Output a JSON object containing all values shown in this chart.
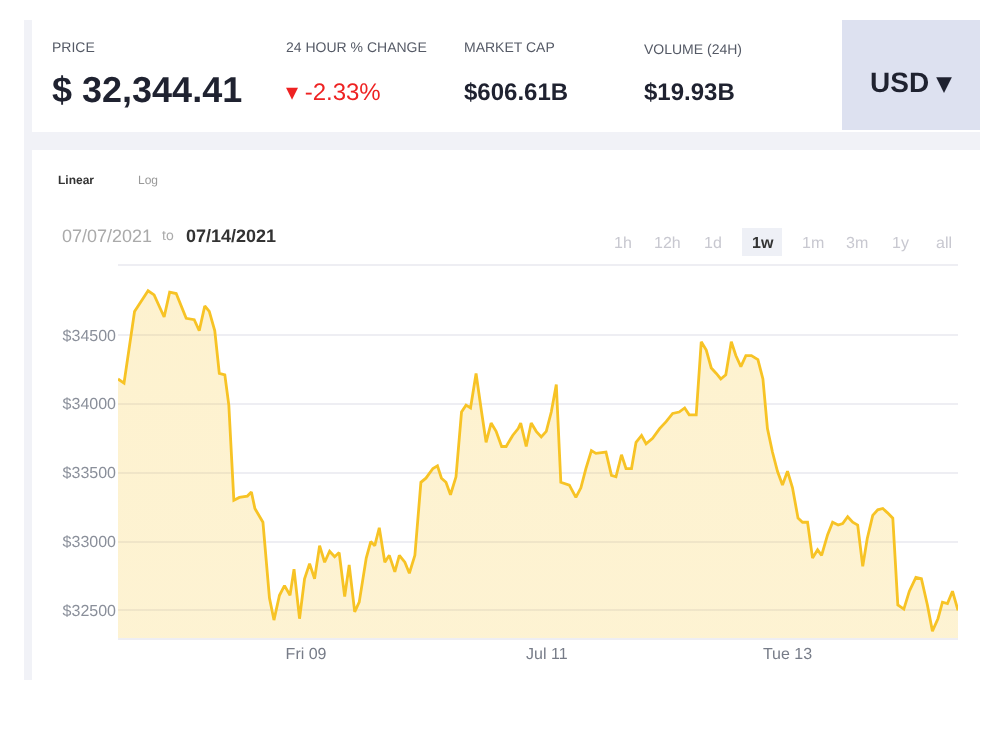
{
  "chart_data": [
    {
      "type": "other",
      "annotations": [
        "PRICE",
        "$ 32,344.41",
        "24 HOUR % CHANGE",
        "▾ -2.33%",
        "MARKET CAP",
        "$606.61B",
        "VOLUME (24H)",
        "$19.93B",
        "USD ▾"
      ]
    },
    {
      "type": "area",
      "annotations": [
        "Linear",
        "Log",
        "07/07/2021",
        "to",
        "07/14/2021",
        "1h",
        "12h",
        "1d",
        "1w",
        "1m",
        "3m",
        "1y",
        "all"
      ],
      "xlim": [
        "2021-07-07T10:30",
        "2021-07-14T10:00"
      ],
      "ylim": [
        32300,
        35000
      ],
      "xticks": [
        {
          "value": "2021-07-09",
          "label": "Fri 09"
        },
        {
          "value": "2021-07-11",
          "label": "Jul 11"
        },
        {
          "value": "2021-07-13",
          "label": "Tue 13"
        }
      ],
      "yticks": [
        {
          "value": 32500,
          "label": "$32500"
        },
        {
          "value": 33000,
          "label": "$33000"
        },
        {
          "value": 33500,
          "label": "$33500"
        },
        {
          "value": 34000,
          "label": "$34000"
        },
        {
          "value": 34500,
          "label": "$34500"
        }
      ],
      "grid": "y",
      "x": [
        "2021-07-07T10:30",
        "2021-07-07T11:42",
        "2021-07-07T13:48",
        "2021-07-07T16:30",
        "2021-07-07T17:42",
        "2021-07-07T19:42",
        "2021-07-07T20:48",
        "2021-07-07T22:06",
        "2021-07-08T00:06",
        "2021-07-08T01:42",
        "2021-07-08T02:42",
        "2021-07-08T03:48",
        "2021-07-08T04:42",
        "2021-07-08T05:48",
        "2021-07-08T06:42",
        "2021-07-08T07:48",
        "2021-07-08T08:36",
        "2021-07-08T09:36",
        "2021-07-08T10:42",
        "2021-07-08T12:18",
        "2021-07-08T13:06",
        "2021-07-08T13:48",
        "2021-07-08T15:24",
        "2021-07-08T16:42",
        "2021-07-08T17:36",
        "2021-07-08T18:42",
        "2021-07-08T19:42",
        "2021-07-08T20:48",
        "2021-07-08T21:36",
        "2021-07-08T22:42",
        "2021-07-08T23:42",
        "2021-07-09T00:42",
        "2021-07-09T01:42",
        "2021-07-09T02:42",
        "2021-07-09T03:42",
        "2021-07-09T04:42",
        "2021-07-09T05:42",
        "2021-07-09T06:36",
        "2021-07-09T07:42",
        "2021-07-09T08:36",
        "2021-07-09T09:42",
        "2021-07-09T10:36",
        "2021-07-09T12:00",
        "2021-07-09T12:54",
        "2021-07-09T13:42",
        "2021-07-09T14:36",
        "2021-07-09T15:42",
        "2021-07-09T16:36",
        "2021-07-09T17:42",
        "2021-07-09T18:36",
        "2021-07-09T19:42",
        "2021-07-09T20:36",
        "2021-07-09T21:42",
        "2021-07-09T22:54",
        "2021-07-09T23:54",
        "2021-07-10T01:18",
        "2021-07-10T02:12",
        "2021-07-10T03:00",
        "2021-07-10T03:54",
        "2021-07-10T04:48",
        "2021-07-10T05:54",
        "2021-07-10T07:00",
        "2021-07-10T07:54",
        "2021-07-10T08:48",
        "2021-07-10T09:54",
        "2021-07-10T11:00",
        "2021-07-10T11:54",
        "2021-07-10T12:54",
        "2021-07-10T13:54",
        "2021-07-10T15:00",
        "2021-07-10T15:54",
        "2021-07-10T17:12",
        "2021-07-10T18:18",
        "2021-07-10T18:48",
        "2021-07-10T19:54",
        "2021-07-10T20:54",
        "2021-07-10T21:54",
        "2021-07-10T22:54",
        "2021-07-10T23:54",
        "2021-07-11T00:54",
        "2021-07-11T01:54",
        "2021-07-11T02:48",
        "2021-07-11T04:30",
        "2021-07-11T05:48",
        "2021-07-11T06:48",
        "2021-07-11T07:48",
        "2021-07-11T08:54",
        "2021-07-11T09:48",
        "2021-07-11T11:48",
        "2021-07-11T12:54",
        "2021-07-11T13:48",
        "2021-07-11T14:54",
        "2021-07-11T15:48",
        "2021-07-11T16:54",
        "2021-07-11T17:48",
        "2021-07-11T18:54",
        "2021-07-11T19:48",
        "2021-07-11T21:06",
        "2021-07-11T22:30",
        "2021-07-11T23:48",
        "2021-07-12T01:06",
        "2021-07-12T02:24",
        "2021-07-12T03:30",
        "2021-07-12T04:24",
        "2021-07-12T05:48",
        "2021-07-12T06:48",
        "2021-07-12T07:48",
        "2021-07-12T08:48",
        "2021-07-12T09:48",
        "2021-07-12T10:42",
        "2021-07-12T11:42",
        "2021-07-12T12:48",
        "2021-07-12T13:42",
        "2021-07-12T14:42",
        "2021-07-12T15:42",
        "2021-07-12T16:48",
        "2021-07-12T18:06",
        "2021-07-12T19:06",
        "2021-07-12T20:00",
        "2021-07-12T21:00",
        "2021-07-12T22:00",
        "2021-07-12T23:00",
        "2021-07-13T00:00",
        "2021-07-13T01:00",
        "2021-07-13T02:06",
        "2021-07-13T03:00",
        "2021-07-13T04:00",
        "2021-07-13T05:00",
        "2021-07-13T06:00",
        "2021-07-13T06:48",
        "2021-07-13T08:00",
        "2021-07-13T09:00",
        "2021-07-13T10:06",
        "2021-07-13T11:00",
        "2021-07-13T12:00",
        "2021-07-13T13:00",
        "2021-07-13T14:00",
        "2021-07-13T15:00",
        "2021-07-13T15:54",
        "2021-07-13T17:00",
        "2021-07-13T18:00",
        "2021-07-13T19:00",
        "2021-07-13T19:54",
        "2021-07-13T21:00",
        "2021-07-13T22:00",
        "2021-07-13T23:12",
        "2021-07-14T00:18",
        "2021-07-14T01:36",
        "2021-07-14T02:42",
        "2021-07-14T03:54",
        "2021-07-14T04:54",
        "2021-07-14T06:00",
        "2021-07-14T06:54",
        "2021-07-14T07:54",
        "2021-07-14T08:54",
        "2021-07-14T10:00"
      ],
      "series": [
        {
          "color": "#f7c325",
          "values": [
            34180,
            34150,
            34670,
            34820,
            34790,
            34630,
            34810,
            34800,
            34620,
            34610,
            34530,
            34710,
            34670,
            34530,
            34220,
            34210,
            33990,
            33300,
            33320,
            33330,
            33360,
            33240,
            33140,
            32590,
            32430,
            32610,
            32680,
            32610,
            32800,
            32440,
            32730,
            32840,
            32730,
            32970,
            32850,
            32930,
            32890,
            32920,
            32600,
            32830,
            32490,
            32560,
            32880,
            33000,
            32970,
            33100,
            32850,
            32900,
            32780,
            32900,
            32850,
            32770,
            32900,
            33430,
            33460,
            33530,
            33550,
            33460,
            33430,
            33340,
            33470,
            33940,
            33990,
            33970,
            34220,
            33940,
            33720,
            33860,
            33800,
            33690,
            33690,
            33770,
            33820,
            33860,
            33690,
            33860,
            33800,
            33760,
            33800,
            33940,
            34140,
            33430,
            33410,
            33320,
            33390,
            33530,
            33660,
            33640,
            33650,
            33480,
            33470,
            33630,
            33530,
            33530,
            33720,
            33770,
            33710,
            33750,
            33820,
            33870,
            33930,
            33940,
            33970,
            33920,
            33920,
            34450,
            34390,
            34260,
            34220,
            34180,
            34210,
            34450,
            34350,
            34270,
            34350,
            34350,
            34320,
            34180,
            33820,
            33650,
            33510,
            33410,
            33510,
            33390,
            33170,
            33140,
            33140,
            32880,
            32940,
            32900,
            33050,
            33140,
            33120,
            33130,
            33180,
            33140,
            33120,
            32820,
            33020,
            33190,
            33230,
            33240,
            33210,
            33170,
            32540,
            32510,
            32640,
            32740,
            32730,
            32540,
            32350,
            32440,
            32560,
            32550,
            32640,
            32500
          ]
        }
      ]
    }
  ]
}
